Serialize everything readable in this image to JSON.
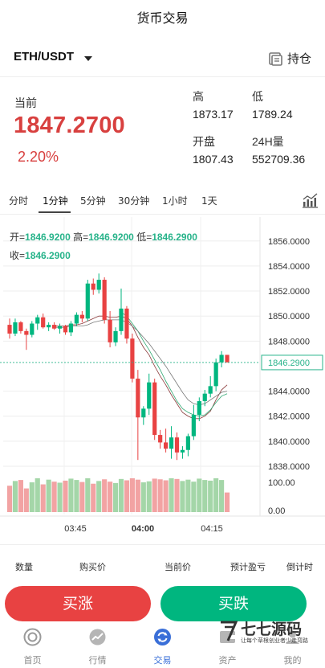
{
  "header": {
    "title": "货币交易"
  },
  "pair": {
    "symbol": "ETH/USDT",
    "holdings_label": "持仓"
  },
  "ticker": {
    "current_label": "当前",
    "price": "1847.2700",
    "change": "2.20%",
    "high_label": "高",
    "high": "1873.17",
    "low_label": "低",
    "low": "1789.24",
    "open_label": "开盘",
    "open": "1807.43",
    "vol_label": "24H量",
    "vol": "552709.36"
  },
  "intervals": [
    "分时",
    "1分钟",
    "5分钟",
    "30分钟",
    "1小时",
    "1天"
  ],
  "active_interval": "1分钟",
  "legend": {
    "open_key": "开=",
    "open_val": "1846.9200",
    "high_key": "高=",
    "high_val": "1846.9200",
    "low_key": "低=",
    "low_val": "1846.2900",
    "close_key": "收=",
    "close_val": "1846.2900"
  },
  "colors": {
    "up": "#e84242",
    "down": "#00b67f",
    "accent": "#3a6fd8",
    "ma1": "#8b3a3a",
    "ma2": "#2fa872",
    "ma3": "#7a7a7a"
  },
  "chart_data": {
    "type": "candlestick",
    "y_ticks": [
      "1856.0000",
      "1854.0000",
      "1852.0000",
      "1850.0000",
      "1848.0000",
      "1844.0000",
      "1842.0000",
      "1840.0000",
      "1838.0000"
    ],
    "y_range": [
      1836.2,
      1857.4
    ],
    "last_price_tag": "1846.2900",
    "last_price": 1846.29,
    "x_labels": [
      "03:45",
      "04:00",
      "04:15"
    ],
    "volume_ticks": [
      "100.00",
      "0.00"
    ],
    "candles": [
      [
        1849.3,
        1849.8,
        1848.2,
        1848.6
      ],
      [
        1848.6,
        1849.8,
        1848.4,
        1849.5
      ],
      [
        1849.5,
        1849.6,
        1848.6,
        1848.8
      ],
      [
        1848.8,
        1849.0,
        1847.3,
        1848.5
      ],
      [
        1848.5,
        1849.6,
        1848.3,
        1849.4
      ],
      [
        1849.4,
        1850.1,
        1848.9,
        1849.9
      ],
      [
        1849.9,
        1850.2,
        1849.0,
        1849.1
      ],
      [
        1849.1,
        1849.5,
        1848.8,
        1849.3
      ],
      [
        1849.3,
        1849.5,
        1848.9,
        1849.0
      ],
      [
        1849.0,
        1849.4,
        1848.6,
        1849.2
      ],
      [
        1849.2,
        1849.3,
        1848.5,
        1848.7
      ],
      [
        1848.7,
        1849.6,
        1848.4,
        1849.4
      ],
      [
        1849.4,
        1850.3,
        1849.2,
        1850.1
      ],
      [
        1850.1,
        1850.4,
        1849.5,
        1849.8
      ],
      [
        1849.8,
        1852.9,
        1849.6,
        1852.6
      ],
      [
        1852.6,
        1853.0,
        1851.7,
        1852.1
      ],
      [
        1852.1,
        1853.4,
        1851.8,
        1852.9
      ],
      [
        1852.9,
        1853.1,
        1849.4,
        1849.7
      ],
      [
        1849.7,
        1850.4,
        1847.5,
        1847.9
      ],
      [
        1847.9,
        1849.1,
        1847.6,
        1848.8
      ],
      [
        1848.8,
        1852.2,
        1848.5,
        1850.6
      ],
      [
        1850.6,
        1850.8,
        1847.8,
        1848.2
      ],
      [
        1848.2,
        1848.6,
        1844.7,
        1845.0
      ],
      [
        1845.0,
        1845.7,
        1838.5,
        1841.9
      ],
      [
        1841.9,
        1842.8,
        1841.3,
        1842.6
      ],
      [
        1842.6,
        1845.4,
        1842.1,
        1844.7
      ],
      [
        1844.7,
        1845.0,
        1840.1,
        1840.5
      ],
      [
        1840.5,
        1840.9,
        1839.4,
        1839.9
      ],
      [
        1839.9,
        1841.0,
        1839.1,
        1839.4
      ],
      [
        1839.4,
        1841.2,
        1838.6,
        1840.3
      ],
      [
        1840.3,
        1840.7,
        1838.5,
        1839.1
      ],
      [
        1839.1,
        1839.6,
        1838.6,
        1839.3
      ],
      [
        1839.3,
        1840.6,
        1838.8,
        1840.4
      ],
      [
        1840.4,
        1842.9,
        1840.1,
        1842.1
      ],
      [
        1842.1,
        1843.5,
        1841.6,
        1843.2
      ],
      [
        1843.2,
        1844.1,
        1842.8,
        1843.8
      ],
      [
        1843.8,
        1845.2,
        1843.5,
        1844.4
      ],
      [
        1844.4,
        1846.6,
        1844.0,
        1846.3
      ],
      [
        1846.3,
        1847.2,
        1845.9,
        1846.9
      ],
      [
        1846.9,
        1846.9,
        1846.3,
        1846.3
      ]
    ],
    "volumes": [
      78,
      92,
      95,
      70,
      88,
      100,
      82,
      96,
      90,
      87,
      93,
      99,
      95,
      89,
      100,
      84,
      92,
      97,
      90,
      86,
      98,
      94,
      100,
      96,
      88,
      91,
      99,
      97,
      94,
      100,
      98,
      92,
      96,
      90,
      99,
      95,
      93,
      100,
      95,
      58
    ],
    "ma_lines": [
      {
        "color": "ma1",
        "values": [
          null,
          null,
          null,
          null,
          null,
          null,
          null,
          null,
          1849.2,
          1849.2,
          1849.2,
          1849.3,
          1849.3,
          1849.4,
          1849.6,
          1849.8,
          1850.0,
          1850.0,
          1849.9,
          1849.9,
          1850.0,
          1849.8,
          1849.2,
          1848.3,
          1847.5,
          1846.9,
          1846.0,
          1845.2,
          1844.5,
          1843.7,
          1843.0,
          1842.3,
          1842.0,
          1841.8,
          1841.8,
          1842.0,
          1842.4,
          1843.3,
          1844.1,
          1844.5
        ]
      },
      {
        "color": "ma2",
        "values": [
          null,
          null,
          null,
          null,
          null,
          null,
          null,
          null,
          null,
          null,
          null,
          null,
          null,
          null,
          null,
          null,
          null,
          null,
          null,
          null,
          1850.3,
          1850.0,
          1849.4,
          1848.8,
          1848.0,
          1847.3,
          1846.5,
          1845.7,
          1844.8,
          1844.0,
          1843.2,
          1842.6,
          1842.3,
          1842.1,
          1842.0,
          1842.1,
          1842.5,
          1843.1,
          1843.6,
          1843.8
        ]
      },
      {
        "color": "ma3",
        "values": [
          null,
          null,
          null,
          null,
          null,
          null,
          null,
          null,
          1849.1,
          1849.1,
          1849.1,
          1849.2,
          1849.2,
          1849.2,
          1849.3,
          1849.5,
          1849.6,
          1849.7,
          1849.7,
          1849.7,
          1849.7,
          1849.5,
          1849.2,
          1848.8,
          1848.3,
          1847.8,
          1847.2,
          1846.6,
          1846.0,
          1845.3,
          1844.6,
          1843.9,
          1843.3,
          1843.0,
          1842.9,
          1843.0,
          1843.3,
          1843.6,
          1843.9,
          1844.0
        ]
      }
    ]
  },
  "order_table": {
    "headers": [
      "数量",
      "购买价",
      "当前价",
      "预计盈亏",
      "倒计时"
    ]
  },
  "actions": {
    "buy_label": "买涨",
    "sell_label": "买跌"
  },
  "tabs": [
    {
      "label": "首页",
      "icon": "home-icon"
    },
    {
      "label": "行情",
      "icon": "market-icon"
    },
    {
      "label": "交易",
      "icon": "trade-icon"
    },
    {
      "label": "资产",
      "icon": "assets-icon"
    },
    {
      "label": "我的",
      "icon": "profile-icon"
    }
  ],
  "watermark": {
    "name": "七七源码",
    "tagline": "让每个草根创业者少走弯路"
  }
}
